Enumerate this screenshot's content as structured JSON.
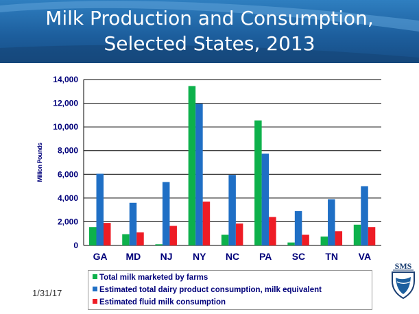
{
  "slide": {
    "title_line1": "Milk Production and Consumption,",
    "title_line2": "Selected States, 2013",
    "date": "1/31/17",
    "logo_text": "SMS"
  },
  "colors": {
    "banner": "#1d5f9e",
    "series": [
      "#0db14b",
      "#1f6fc5",
      "#ee1c25"
    ],
    "axis_text": "#00007a",
    "grid": "#000000"
  },
  "chart_data": {
    "type": "bar",
    "title": "",
    "xlabel": "",
    "ylabel": "Million Pounds",
    "ylim": [
      0,
      14000
    ],
    "yticks": [
      0,
      2000,
      4000,
      6000,
      8000,
      10000,
      12000,
      14000
    ],
    "ytick_labels": [
      "0",
      "2,000",
      "4,000",
      "6,000",
      "8,000",
      "10,000",
      "12,000",
      "14,000"
    ],
    "grid": true,
    "legend_position": "bottom",
    "categories": [
      "GA",
      "MD",
      "NJ",
      "NY",
      "NC",
      "PA",
      "SC",
      "TN",
      "VA"
    ],
    "series": [
      {
        "name": "Total milk marketed by farms",
        "values": [
          1550,
          950,
          100,
          13450,
          900,
          10550,
          250,
          750,
          1750
        ]
      },
      {
        "name": "Estimated total dairy product consumption, milk equivalent",
        "values": [
          6050,
          3600,
          5350,
          11950,
          5950,
          7750,
          2900,
          3900,
          5000
        ]
      },
      {
        "name": "Estimated fluid milk consumption",
        "values": [
          1900,
          1100,
          1650,
          3700,
          1850,
          2400,
          900,
          1200,
          1550
        ]
      }
    ]
  }
}
